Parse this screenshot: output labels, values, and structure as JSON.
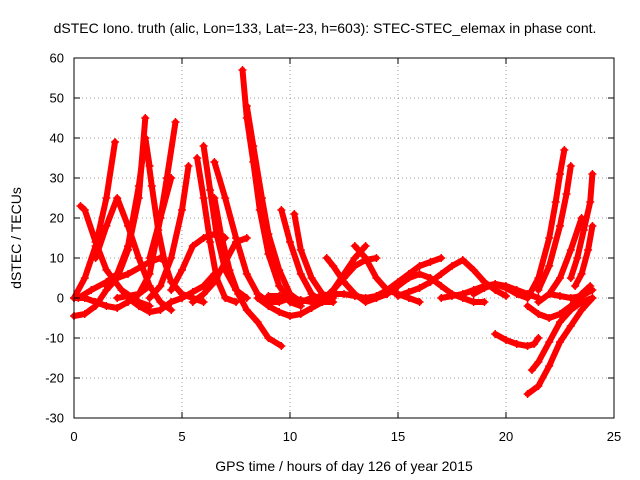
{
  "chart_data": {
    "type": "scatter",
    "title": "dSTEC Iono. truth (alic, Lon=133, Lat=-23, h=603): STEC-STEC_elemax in phase cont.",
    "xlabel": "GPS time / hours of day 126 of year 2015",
    "ylabel": "dSTEC  / TECUs",
    "xlim": [
      0,
      25
    ],
    "ylim": [
      -30,
      60
    ],
    "xticks": [
      0,
      5,
      10,
      15,
      20,
      25
    ],
    "yticks": [
      -30,
      -20,
      -10,
      0,
      10,
      20,
      30,
      40,
      50,
      60
    ],
    "grid": true,
    "marker": "plus",
    "color": "#ff0000",
    "series": [
      {
        "x": [
          0.0,
          0.5,
          1.0,
          1.5,
          1.9
        ],
        "y": [
          0.0,
          5.0,
          13.0,
          25.0,
          39.0
        ]
      },
      {
        "x": [
          0.2,
          0.8,
          1.5,
          2.0,
          2.5,
          3.0,
          3.3,
          3.5
        ],
        "y": [
          0.0,
          2.0,
          4.0,
          6.0,
          13.0,
          28.0,
          40.0,
          33.0
        ]
      },
      {
        "x": [
          0.3,
          0.5,
          1.0,
          1.5,
          2.2,
          3.0,
          3.5
        ],
        "y": [
          23.0,
          22.0,
          14.0,
          7.0,
          2.0,
          -1.0,
          -2.0
        ]
      },
      {
        "x": [
          0.0,
          0.5,
          1.0,
          1.5,
          2.0,
          2.5,
          3.5,
          4.0
        ],
        "y": [
          -4.5,
          -4.0,
          -2.0,
          2.0,
          5.0,
          6.0,
          9.0,
          10.0
        ]
      },
      {
        "x": [
          0.0,
          0.5,
          1.0,
          1.5,
          2.0,
          2.5,
          3.0,
          3.5
        ],
        "y": [
          0.0,
          0.0,
          -1.0,
          -2.0,
          -2.5,
          -1.0,
          1.0,
          3.0
        ]
      },
      {
        "x": [
          1.0,
          1.5,
          2.0,
          2.5,
          3.0,
          3.5,
          4.0,
          4.5
        ],
        "y": [
          10.0,
          18.0,
          25.0,
          18.0,
          10.0,
          3.0,
          -1.0,
          -3.0
        ]
      },
      {
        "x": [
          1.5,
          2.0,
          2.5,
          3.0,
          3.3
        ],
        "y": [
          3.0,
          5.0,
          12.0,
          25.0,
          45.0
        ]
      },
      {
        "x": [
          3.3,
          3.6,
          3.9,
          4.2,
          4.5,
          5.0,
          5.5,
          6.0
        ],
        "y": [
          40.0,
          28.0,
          17.0,
          9.0,
          4.0,
          1.0,
          0.0,
          -1.0
        ]
      },
      {
        "x": [
          2.0,
          2.5,
          3.0,
          3.5,
          4.0,
          4.5
        ],
        "y": [
          0.0,
          0.5,
          1.0,
          6.0,
          20.0,
          30.0
        ]
      },
      {
        "x": [
          3.5,
          4.0,
          4.3,
          4.7
        ],
        "y": [
          10.0,
          20.0,
          30.0,
          44.0
        ]
      },
      {
        "x": [
          3.5,
          4.0,
          4.5,
          5.0,
          5.3
        ],
        "y": [
          0.0,
          3.0,
          10.0,
          22.0,
          33.0
        ]
      },
      {
        "x": [
          2.5,
          3.0,
          3.5,
          4.0,
          4.5,
          5.0,
          5.5,
          6.0,
          6.5
        ],
        "y": [
          0.0,
          -2.0,
          -3.5,
          -3.0,
          -1.0,
          0.0,
          1.5,
          3.0,
          6.0
        ]
      },
      {
        "x": [
          4.5,
          5.0,
          5.5,
          6.0,
          6.5,
          7.0
        ],
        "y": [
          2.0,
          7.0,
          13.0,
          15.0,
          16.0,
          15.0
        ]
      },
      {
        "x": [
          5.7,
          6.0,
          6.3,
          6.6,
          7.0,
          7.5
        ],
        "y": [
          35.0,
          25.0,
          14.0,
          5.0,
          0.0,
          -1.0
        ]
      },
      {
        "x": [
          6.0,
          6.3,
          6.6,
          7.0,
          7.5,
          8.0
        ],
        "y": [
          38.0,
          27.0,
          16.0,
          7.0,
          2.0,
          0.0
        ]
      },
      {
        "x": [
          6.5,
          6.8,
          7.2,
          7.6,
          8.0,
          8.5,
          9.0,
          9.6
        ],
        "y": [
          25.0,
          16.0,
          7.0,
          1.0,
          -3.0,
          -6.0,
          -10.0,
          -12.0
        ]
      },
      {
        "x": [
          5.5,
          6.0,
          6.5,
          7.0,
          7.5,
          8.0
        ],
        "y": [
          -1.0,
          1.0,
          4.0,
          9.0,
          14.0,
          15.0
        ]
      },
      {
        "x": [
          6.5,
          7.0,
          7.5,
          8.0,
          8.5,
          9.0,
          9.5,
          10.0
        ],
        "y": [
          34.0,
          25.0,
          15.0,
          6.0,
          1.0,
          -1.0,
          -1.0,
          0.0
        ]
      },
      {
        "x": [
          7.8,
          8.0,
          8.3,
          8.6,
          9.0,
          9.5,
          10.0,
          10.5
        ],
        "y": [
          57.0,
          45.0,
          34.0,
          22.0,
          11.0,
          3.0,
          -1.0,
          -2.0
        ]
      },
      {
        "x": [
          8.0,
          8.3,
          8.7,
          9.0,
          9.5,
          10.0,
          10.5,
          11.0
        ],
        "y": [
          48.0,
          38.0,
          25.0,
          16.0,
          7.0,
          1.0,
          -1.0,
          0.0
        ]
      },
      {
        "x": [
          9.6,
          10.0,
          10.5,
          11.0,
          11.5,
          12.0
        ],
        "y": [
          22.0,
          14.0,
          6.0,
          1.0,
          -1.0,
          -1.0
        ]
      },
      {
        "x": [
          10.2,
          10.5,
          11.0,
          11.5,
          12.0
        ],
        "y": [
          21.0,
          12.0,
          5.0,
          1.0,
          0.0
        ]
      },
      {
        "x": [
          8.5,
          9.0,
          9.5,
          10.0,
          10.5,
          11.0,
          11.5,
          12.0,
          12.5,
          13.0,
          13.5,
          14.0
        ],
        "y": [
          0.0,
          -2.0,
          -3.5,
          -4.5,
          -4.0,
          -2.5,
          -1.0,
          2.0,
          5.0,
          8.0,
          9.5,
          10.0
        ]
      },
      {
        "x": [
          9.0,
          9.5,
          10.0,
          10.5,
          11.0,
          11.5,
          12.0,
          12.5,
          13.0,
          13.5
        ],
        "y": [
          0.5,
          0.5,
          0.0,
          -0.5,
          -1.0,
          -0.5,
          2.0,
          6.0,
          10.0,
          13.0
        ]
      },
      {
        "x": [
          11.7,
          12.0,
          12.5,
          13.0,
          13.5,
          14.0,
          14.5,
          15.0
        ],
        "y": [
          10.0,
          8.0,
          4.0,
          1.0,
          -1.0,
          0.0,
          1.0,
          3.0
        ]
      },
      {
        "x": [
          13.0,
          13.5,
          14.0,
          14.5,
          15.0,
          15.5,
          16.0
        ],
        "y": [
          13.0,
          10.0,
          5.0,
          2.0,
          1.0,
          0.0,
          -1.0
        ]
      },
      {
        "x": [
          11.0,
          11.5,
          12.0,
          12.5,
          13.0,
          13.5,
          14.0,
          14.5,
          15.0,
          15.5,
          16.0,
          16.5,
          17.0
        ],
        "y": [
          0.0,
          0.5,
          1.0,
          1.0,
          0.5,
          0.0,
          0.5,
          2.0,
          4.0,
          6.0,
          8.0,
          9.0,
          10.0
        ]
      },
      {
        "x": [
          14.0,
          14.5,
          15.0,
          15.5,
          16.0,
          16.5,
          17.0,
          17.5,
          18.0,
          18.5,
          19.0
        ],
        "y": [
          0.0,
          1.0,
          3.0,
          5.0,
          6.0,
          5.0,
          3.0,
          1.0,
          0.0,
          -1.0,
          -1.0
        ]
      },
      {
        "x": [
          15.0,
          15.5,
          16.0,
          16.5,
          17.0,
          17.5,
          18.0,
          18.5,
          19.0,
          19.5,
          20.0
        ],
        "y": [
          0.5,
          1.5,
          2.5,
          4.0,
          6.0,
          8.0,
          9.5,
          7.0,
          4.0,
          2.0,
          0.5
        ]
      },
      {
        "x": [
          17.0,
          17.5,
          18.0,
          18.5,
          19.0,
          19.5,
          20.0,
          20.5,
          21.0
        ],
        "y": [
          0.0,
          0.5,
          1.0,
          2.0,
          3.0,
          3.5,
          2.5,
          1.0,
          0.0
        ]
      },
      {
        "x": [
          18.5,
          19.0,
          19.5,
          20.0,
          20.5,
          21.0,
          21.5
        ],
        "y": [
          1.0,
          2.5,
          3.5,
          3.0,
          2.0,
          1.0,
          0.0
        ]
      },
      {
        "x": [
          19.5,
          20.0,
          20.5,
          21.0,
          21.3,
          21.5
        ],
        "y": [
          -9.0,
          -10.5,
          -11.5,
          -12.0,
          -11.5,
          -10.0
        ]
      },
      {
        "x": [
          21.0,
          21.5,
          22.0,
          22.3,
          22.5,
          22.7
        ],
        "y": [
          0.0,
          5.0,
          15.0,
          24.0,
          31.0,
          37.0
        ]
      },
      {
        "x": [
          21.5,
          22.0,
          22.5,
          22.8,
          23.0
        ],
        "y": [
          2.0,
          8.0,
          18.0,
          26.0,
          33.0
        ]
      },
      {
        "x": [
          21.5,
          22.0,
          22.5,
          23.0,
          23.5
        ],
        "y": [
          -1.0,
          1.0,
          5.0,
          12.0,
          20.0
        ]
      },
      {
        "x": [
          21.0,
          21.5,
          22.0,
          22.5,
          23.0,
          23.5,
          24.0
        ],
        "y": [
          -24.0,
          -22.0,
          -17.0,
          -11.0,
          -7.0,
          -3.0,
          0.0
        ]
      },
      {
        "x": [
          21.2,
          21.5,
          22.0,
          22.5,
          23.0,
          23.5,
          24.0
        ],
        "y": [
          -18.0,
          -16.0,
          -11.0,
          -6.0,
          -3.0,
          -1.0,
          0.0
        ]
      },
      {
        "x": [
          21.0,
          21.5,
          22.0,
          22.5,
          23.0,
          23.5,
          23.9
        ],
        "y": [
          -2.0,
          -4.0,
          -5.0,
          -4.0,
          -2.0,
          1.0,
          3.0
        ]
      },
      {
        "x": [
          23.0,
          23.3,
          23.6,
          23.9,
          24.0
        ],
        "y": [
          5.0,
          10.0,
          17.0,
          24.0,
          31.0
        ]
      },
      {
        "x": [
          23.2,
          23.5,
          23.8,
          24.0
        ],
        "y": [
          3.0,
          6.0,
          12.0,
          18.0
        ]
      },
      {
        "x": [
          22.0,
          22.5,
          23.0,
          23.5,
          24.0
        ],
        "y": [
          1.0,
          0.5,
          0.0,
          0.5,
          2.0
        ]
      }
    ]
  }
}
